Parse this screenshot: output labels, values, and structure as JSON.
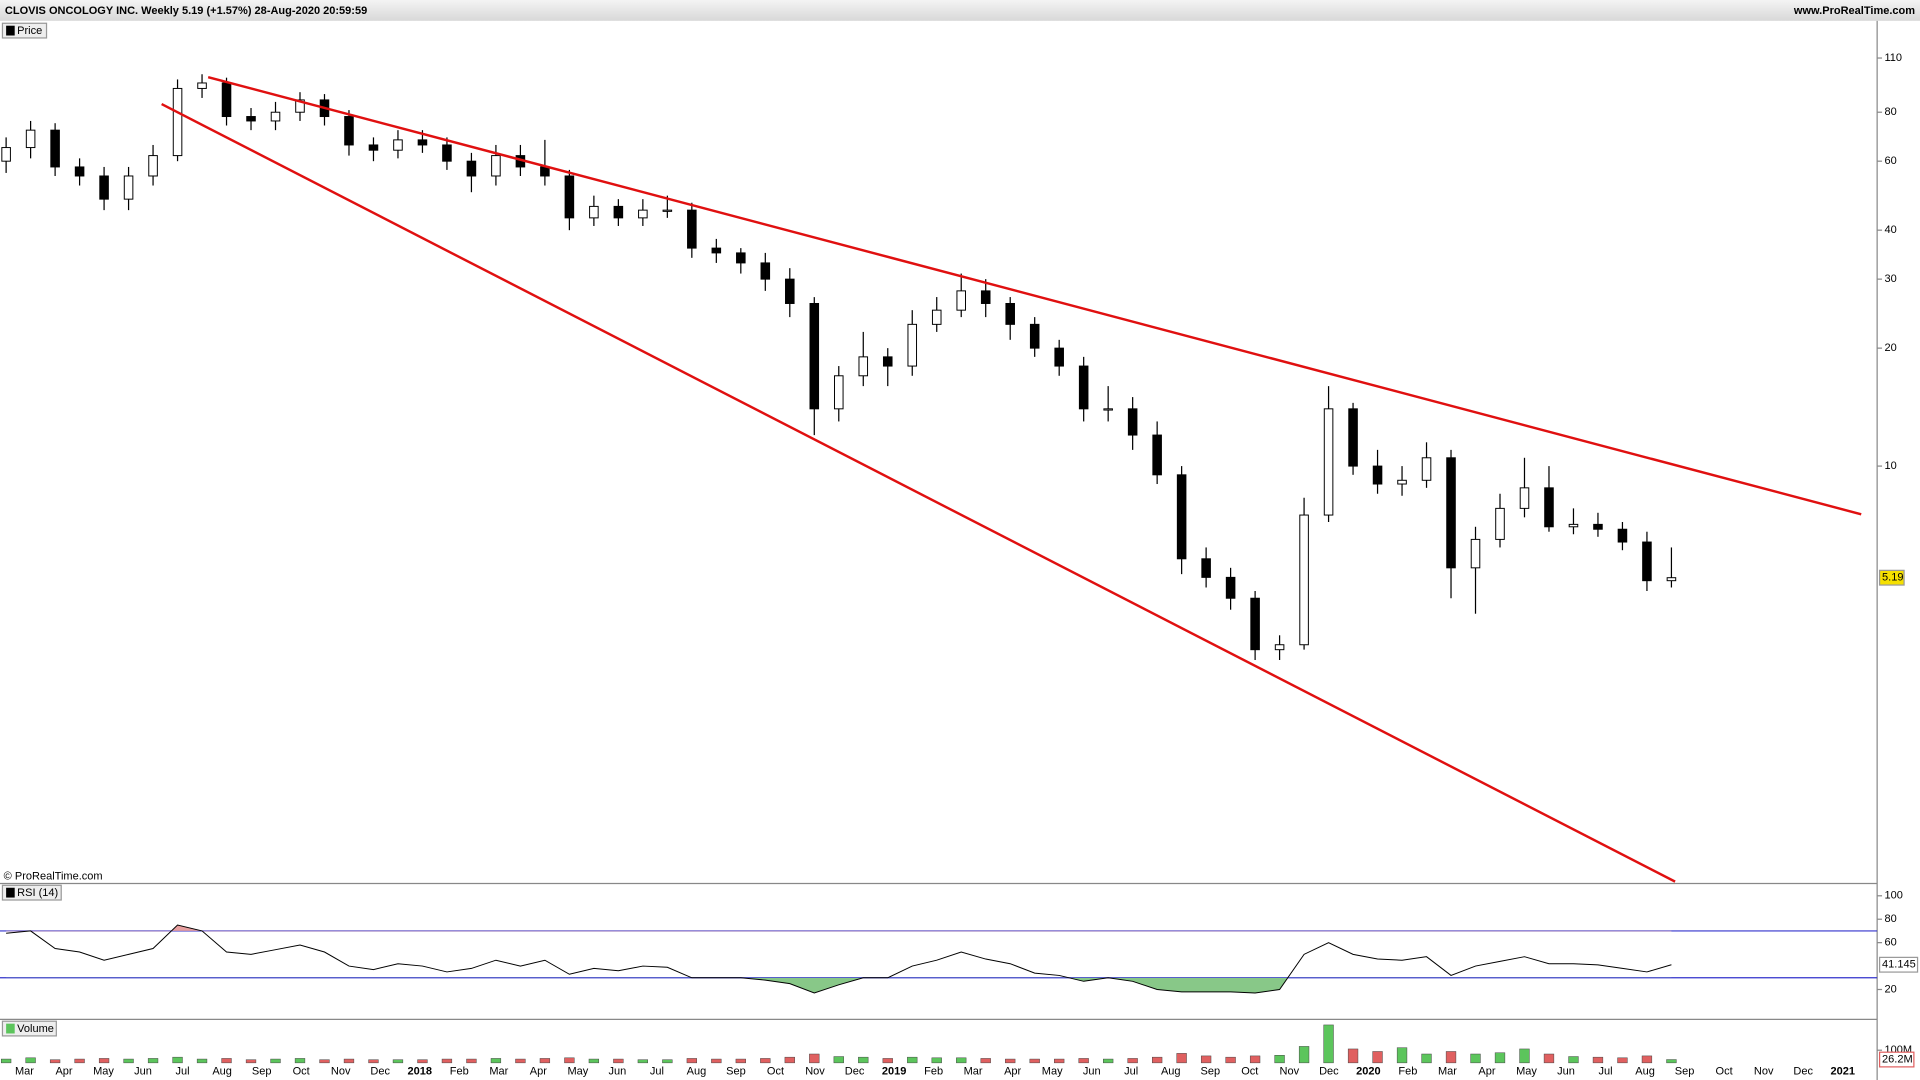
{
  "header": {
    "title": "CLOVIS ONCOLOGY INC. Weekly 5.19 (+1.57%) 28-Aug-2020 20:59:59",
    "site": "www.ProRealTime.com",
    "copyright": "© ProRealTime.com"
  },
  "chart_data": [
    {
      "type": "candlestick",
      "legend": "Price",
      "log_scale": true,
      "up_color": "#ffffff",
      "down_color": "#000000",
      "ylim": [
        0.87,
        122
      ],
      "yticks": [
        10,
        20,
        30,
        40,
        60,
        80,
        110
      ],
      "categories": [
        "Mar",
        "Apr",
        "May",
        "Jun",
        "Jul",
        "Aug",
        "Sep",
        "Oct",
        "Nov",
        "Dec",
        "2018",
        "Feb",
        "Mar",
        "Apr",
        "May",
        "Jun",
        "Jul",
        "Aug",
        "Sep",
        "Oct",
        "Nov",
        "Dec",
        "2019",
        "Feb",
        "Mar",
        "Apr",
        "May",
        "Jun",
        "Jul",
        "Aug",
        "Sep",
        "Oct",
        "Nov",
        "Dec",
        "2020",
        "Feb",
        "Mar",
        "Apr",
        "May",
        "Jun",
        "Jul",
        "Aug",
        "Sep",
        "Oct",
        "Nov",
        "Dec",
        "2021"
      ],
      "candles": [
        [
          60,
          69,
          56,
          65
        ],
        [
          65,
          76,
          61,
          72
        ],
        [
          72,
          75,
          55,
          58
        ],
        [
          58,
          61,
          52,
          55
        ],
        [
          55,
          58,
          45,
          48
        ],
        [
          48,
          58,
          45,
          55
        ],
        [
          55,
          66,
          52,
          62
        ],
        [
          62,
          97,
          60,
          92
        ],
        [
          92,
          100,
          87,
          95
        ],
        [
          95,
          98,
          74,
          78
        ],
        [
          78,
          82,
          72,
          76
        ],
        [
          76,
          85,
          72,
          80
        ],
        [
          80,
          90,
          76,
          86
        ],
        [
          86,
          89,
          74,
          78
        ],
        [
          78,
          81,
          62,
          66
        ],
        [
          66,
          69,
          60,
          64
        ],
        [
          64,
          72,
          61,
          68
        ],
        [
          68,
          72,
          63,
          66
        ],
        [
          66,
          69,
          57,
          60
        ],
        [
          60,
          63,
          50,
          55
        ],
        [
          55,
          66,
          52,
          62
        ],
        [
          62,
          66,
          55,
          58
        ],
        [
          58,
          68,
          52,
          55
        ],
        [
          55,
          57,
          40,
          43
        ],
        [
          43,
          49,
          41,
          46
        ],
        [
          46,
          48,
          41,
          43
        ],
        [
          43,
          48,
          41,
          45
        ],
        [
          45,
          49,
          43,
          45
        ],
        [
          45,
          47,
          34,
          36
        ],
        [
          36,
          38,
          33,
          35
        ],
        [
          35,
          36,
          31,
          33
        ],
        [
          33,
          35,
          28,
          30
        ],
        [
          30,
          32,
          24,
          26
        ],
        [
          26,
          27,
          12,
          14
        ],
        [
          14,
          18,
          13,
          17
        ],
        [
          17,
          22,
          16,
          19
        ],
        [
          19,
          20,
          16,
          18
        ],
        [
          18,
          25,
          17,
          23
        ],
        [
          23,
          27,
          22,
          25
        ],
        [
          25,
          31,
          24,
          28
        ],
        [
          28,
          30,
          24,
          26
        ],
        [
          26,
          27,
          21,
          23
        ],
        [
          23,
          24,
          19,
          20
        ],
        [
          20,
          21,
          17,
          18
        ],
        [
          18,
          19,
          13,
          14
        ],
        [
          14,
          16,
          13,
          14
        ],
        [
          14,
          15,
          11,
          12
        ],
        [
          12,
          13,
          9,
          9.5
        ],
        [
          9.5,
          10,
          5.3,
          5.8
        ],
        [
          5.8,
          6.2,
          4.9,
          5.2
        ],
        [
          5.2,
          5.5,
          4.3,
          4.6
        ],
        [
          4.6,
          4.8,
          3.2,
          3.4
        ],
        [
          3.4,
          3.7,
          3.2,
          3.5
        ],
        [
          3.5,
          8.3,
          3.4,
          7.5
        ],
        [
          7.5,
          16,
          7.2,
          14
        ],
        [
          14,
          14.5,
          9.5,
          10
        ],
        [
          10,
          11,
          8.5,
          9
        ],
        [
          9,
          10,
          8.4,
          9.2
        ],
        [
          9.2,
          11.5,
          8.8,
          10.5
        ],
        [
          10.5,
          11,
          4.6,
          5.5
        ],
        [
          5.5,
          7,
          4.2,
          6.5
        ],
        [
          6.5,
          8.5,
          6.2,
          7.8
        ],
        [
          7.8,
          10.5,
          7.4,
          8.8
        ],
        [
          8.8,
          10,
          6.8,
          7
        ],
        [
          7,
          7.8,
          6.7,
          7.1
        ],
        [
          7.1,
          7.6,
          6.6,
          6.9
        ],
        [
          6.9,
          7.2,
          6.1,
          6.4
        ],
        [
          6.4,
          6.8,
          4.8,
          5.1
        ],
        [
          5.1,
          6.2,
          4.9,
          5.19
        ]
      ]
    },
    {
      "type": "line",
      "legend": "RSI (14)",
      "color": "#000000",
      "level_color": "#3333cc",
      "ylim": [
        -5,
        110
      ],
      "yticks": [
        20,
        60,
        80,
        100
      ],
      "levels": [
        70,
        30
      ],
      "values": [
        68,
        70,
        55,
        52,
        45,
        50,
        55,
        75,
        70,
        52,
        50,
        54,
        58,
        52,
        40,
        37,
        42,
        40,
        35,
        38,
        45,
        40,
        45,
        33,
        38,
        36,
        40,
        39,
        30,
        30,
        30,
        28,
        25,
        17,
        24,
        30,
        30,
        40,
        45,
        52,
        46,
        42,
        34,
        32,
        27,
        30,
        27,
        20,
        18,
        18,
        18,
        17,
        20,
        50,
        60,
        50,
        46,
        45,
        48,
        32,
        40,
        44,
        48,
        42,
        42,
        41,
        38,
        35,
        41.145
      ]
    },
    {
      "type": "bar",
      "legend": "Volume",
      "up_color": "#5cc55c",
      "down_color": "#e06060",
      "ylim": [
        0,
        310
      ],
      "yticks": [
        {
          "value": 100,
          "label": "100M"
        }
      ],
      "last_label": "26.2M",
      "values": [
        30,
        40,
        25,
        30,
        35,
        30,
        35,
        45,
        30,
        35,
        25,
        30,
        35,
        25,
        30,
        25,
        25,
        25,
        30,
        30,
        35,
        30,
        35,
        40,
        30,
        30,
        25,
        25,
        35,
        30,
        30,
        35,
        45,
        70,
        50,
        45,
        35,
        45,
        40,
        40,
        35,
        30,
        30,
        30,
        35,
        30,
        35,
        45,
        75,
        55,
        45,
        55,
        60,
        130,
        300,
        110,
        90,
        120,
        70,
        90,
        70,
        80,
        110,
        70,
        50,
        45,
        40,
        55,
        26.2
      ]
    }
  ]
}
